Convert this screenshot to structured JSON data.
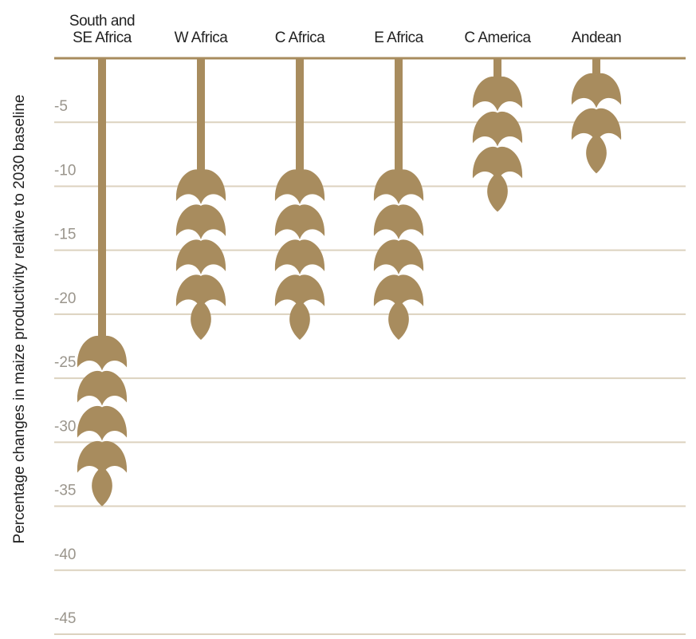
{
  "chart_data": {
    "type": "pictorial-bar",
    "y_label": "Percentage changes in maize productivity relative to 2030 baseline",
    "categories": [
      "South and SE Africa",
      "W Africa",
      "C Africa",
      "E Africa",
      "C America",
      "Andean"
    ],
    "values": [
      -35,
      -22,
      -22,
      -22,
      -12,
      -9
    ],
    "color": "#a88c5e",
    "ylim": [
      0,
      -45
    ],
    "yticks": [
      -5,
      -10,
      -15,
      -20,
      -25,
      -30,
      -35,
      -40,
      -45
    ],
    "grid": true
  }
}
